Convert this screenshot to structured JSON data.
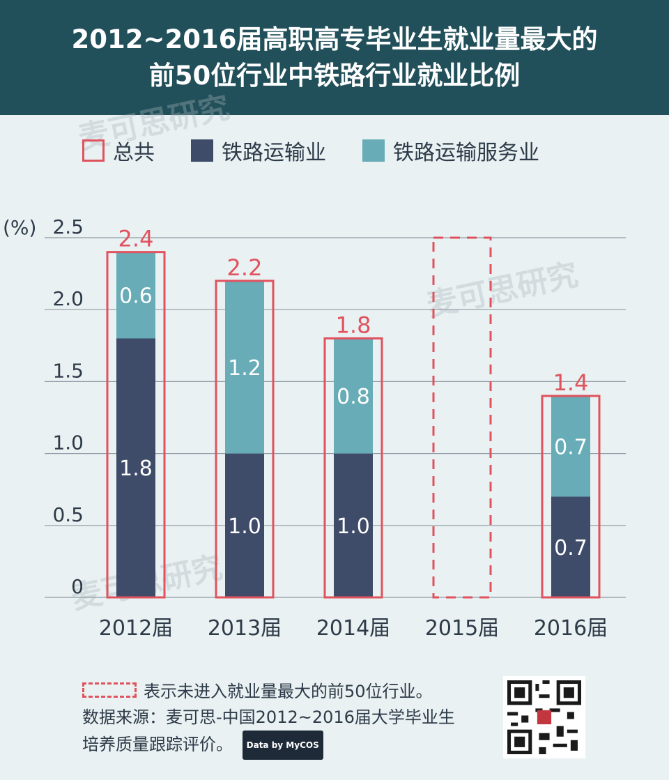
{
  "header": {
    "title_line1": "2012~2016届高职高专毕业生就业量最大的",
    "title_line2": "前50位行业中铁路行业就业比例"
  },
  "legend": {
    "total": "总共",
    "rail_transport": "铁路运输业",
    "rail_service": "铁路运输服务业"
  },
  "colors": {
    "rail_transport": "#3e4b69",
    "rail_service": "#67acb7",
    "total_outline": "#e0535e",
    "grid": "#8f9aa4",
    "header_bg": "#22505a"
  },
  "chart_data": {
    "type": "bar",
    "stacked": true,
    "categories": [
      "2012届",
      "2013届",
      "2014届",
      "2015届",
      "2016届"
    ],
    "series": [
      {
        "name": "铁路运输业",
        "values": [
          1.8,
          1.0,
          1.0,
          null,
          0.7
        ]
      },
      {
        "name": "铁路运输服务业",
        "values": [
          0.6,
          1.2,
          0.8,
          null,
          0.7
        ]
      }
    ],
    "totals": [
      2.4,
      2.2,
      1.8,
      null,
      1.4
    ],
    "ylabel": "(%)",
    "ylim": [
      0,
      2.5
    ],
    "yticks": [
      "0",
      "0.5",
      "1.0",
      "1.5",
      "2.0",
      "2.5"
    ],
    "grid": true,
    "not_in_top50": [
      "2015届"
    ]
  },
  "note": {
    "text": "表示未进入就业量最大的前50位行业。"
  },
  "source": {
    "line1": "数据来源：麦可思-中国2012~2016届大学毕业生",
    "line2": "培养质量跟踪评价。",
    "badge": "Data by MyCOS"
  },
  "watermark": "麦可思研究"
}
